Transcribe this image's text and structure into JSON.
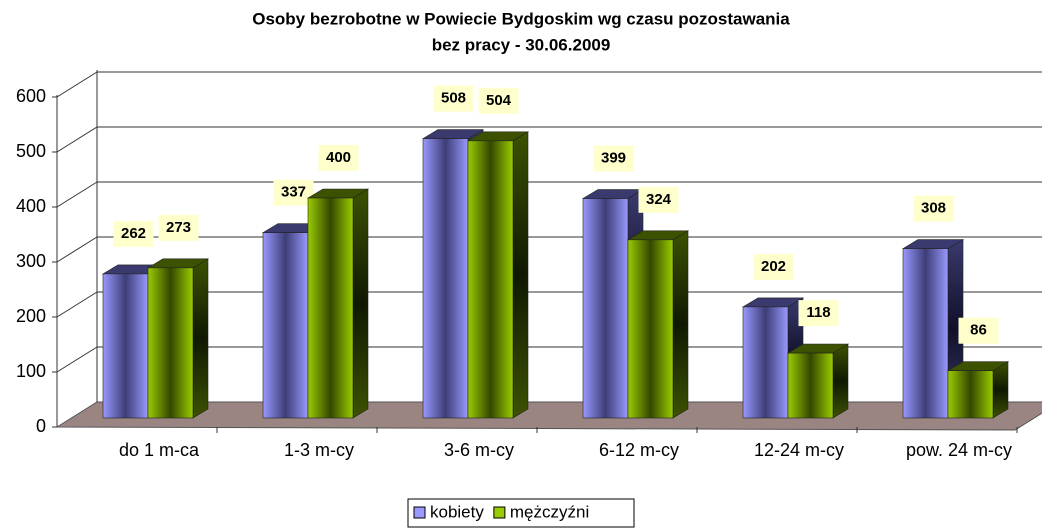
{
  "chart_data": {
    "type": "bar3d",
    "title": [
      "Osoby bezrobotne w Powiecie Bydgoskim wg czasu pozostawania",
      "bez pracy - 30.06.2009"
    ],
    "categories": [
      "do 1 m-ca",
      "1-3 m-cy",
      "3-6 m-cy",
      "6-12 m-cy",
      "12-24 m-cy",
      "pow. 24 m-cy"
    ],
    "series": [
      {
        "name": "kobiety",
        "color": "#9999ff",
        "values": [
          262,
          337,
          508,
          399,
          202,
          308
        ]
      },
      {
        "name": "mężczyźni",
        "color": "#99cc00",
        "values": [
          273,
          400,
          504,
          324,
          118,
          86
        ]
      }
    ],
    "ylim": [
      0,
      600
    ],
    "yticks": [
      0,
      100,
      200,
      300,
      400,
      500,
      600
    ],
    "grid": true,
    "legend": "bottom"
  }
}
